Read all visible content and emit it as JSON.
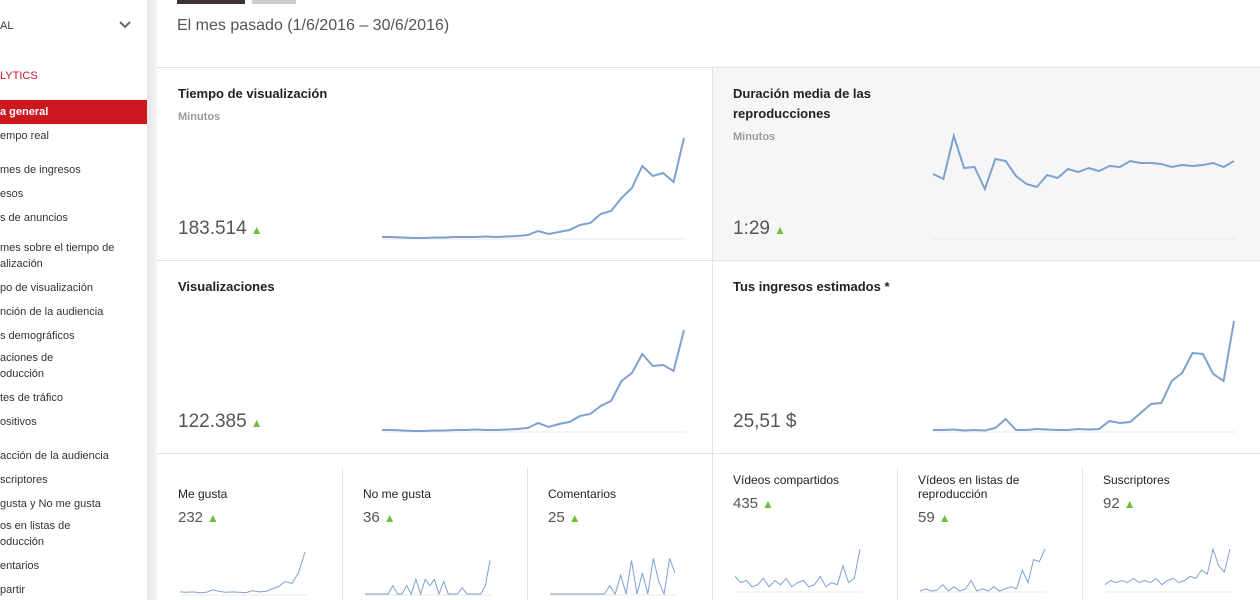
{
  "sidebar": {
    "channel": "AL",
    "section": "LYTICS",
    "items": [
      "a general",
      "empo real",
      "mes de ingresos",
      "esos",
      "s de anuncios",
      "mes sobre el tiempo de",
      "alización",
      "po de visualización",
      "nción de la audiencia",
      "s demográficos",
      "aciones de",
      "oducción",
      "tes de tráfico",
      "ositivos",
      "acción de la audiencia",
      "scriptores",
      "gusta y No me gusta",
      "os en listas de",
      "oducción",
      "entarios",
      "partir"
    ]
  },
  "header": {
    "date_range": "El mes pasado (1/6/2016 – 30/6/2016)"
  },
  "cards": [
    {
      "title": "Tiempo de visualización",
      "unit": "Minutos",
      "value": "183.514",
      "trend": [
        1,
        1,
        0.5,
        0,
        0,
        0.5,
        0.5,
        1,
        1,
        1,
        1.5,
        1,
        1.5,
        2,
        3,
        7,
        4,
        6,
        8,
        13,
        15,
        24,
        27,
        40,
        50,
        72,
        62,
        65,
        56,
        100
      ]
    },
    {
      "title": "Duración media de las reproducciones",
      "unit": "Minutos",
      "value": "1:29",
      "trend": [
        64,
        59,
        102,
        70,
        71,
        49,
        79,
        77,
        62,
        54,
        51,
        63,
        60,
        69,
        66,
        70,
        67,
        72,
        71,
        77,
        75,
        75,
        74,
        71,
        73,
        72,
        73,
        75,
        71,
        77
      ]
    },
    {
      "title": "Visualizaciones",
      "value": "122.385",
      "trend": [
        1,
        1,
        0.5,
        0,
        0,
        0.5,
        0.5,
        1,
        1,
        1.5,
        1,
        1,
        1.5,
        2,
        3,
        8,
        4,
        7,
        9,
        15,
        17,
        25,
        30,
        50,
        58,
        77,
        65,
        66,
        60,
        101
      ]
    },
    {
      "title": "Tus ingresos estimados *",
      "value": "25,51 $",
      "trend": [
        1,
        1,
        1.5,
        0.5,
        1,
        0.5,
        3,
        12,
        1,
        1,
        2,
        1.5,
        1,
        1,
        2,
        1.5,
        2,
        10,
        8,
        9,
        18,
        27,
        28,
        50,
        58,
        78,
        77,
        57,
        50,
        110
      ]
    }
  ],
  "small_cards": [
    {
      "title": "Me gusta",
      "value": "232",
      "trend": [
        5,
        4,
        5,
        3,
        4,
        10,
        6,
        4,
        5,
        4,
        3,
        8,
        5,
        6,
        12,
        18,
        30,
        25,
        50,
        100
      ]
    },
    {
      "title": "No me gusta",
      "value": "36",
      "trend": [
        0,
        0,
        0,
        0,
        0,
        0,
        20,
        0,
        0,
        20,
        0,
        35,
        0,
        35,
        20,
        35,
        0,
        30,
        0,
        0,
        0,
        15,
        0,
        0,
        0,
        0,
        20,
        80
      ]
    },
    {
      "title": "Comentarios",
      "value": "25",
      "trend": [
        0,
        0,
        0,
        0,
        0,
        0,
        0,
        0,
        0,
        0,
        0,
        20,
        0,
        45,
        0,
        80,
        0,
        50,
        0,
        85,
        30,
        0,
        85,
        50
      ]
    },
    {
      "title": "Vídeos compartidos",
      "value": "435",
      "trend": [
        35,
        20,
        25,
        10,
        15,
        30,
        10,
        25,
        15,
        30,
        10,
        20,
        25,
        10,
        15,
        35,
        10,
        20,
        15,
        60,
        20,
        30,
        100
      ]
    },
    {
      "title": "Vídeos en listas de reproducción",
      "value": "59",
      "trend": [
        0,
        5,
        0,
        2,
        15,
        0,
        10,
        0,
        5,
        25,
        0,
        5,
        0,
        10,
        0,
        5,
        10,
        5,
        50,
        20,
        75,
        70,
        100
      ]
    },
    {
      "title": "Suscriptores",
      "value": "92",
      "trend": [
        15,
        25,
        20,
        25,
        20,
        30,
        20,
        25,
        20,
        30,
        15,
        25,
        30,
        20,
        25,
        35,
        30,
        50,
        40,
        100,
        60,
        45,
        100
      ]
    }
  ]
}
